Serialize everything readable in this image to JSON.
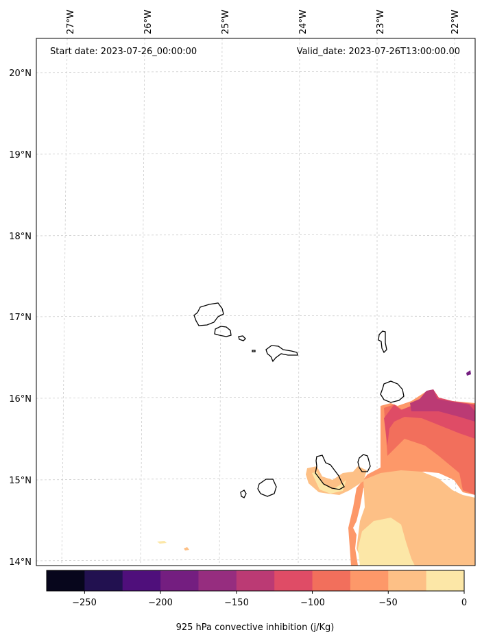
{
  "map": {
    "start_label": "Start date: 2023-07-26_00:00:00",
    "valid_label": "Valid_date: 2023-07-26T13:00:00.00",
    "lon_ticks": [
      "27°W",
      "26°W",
      "25°W",
      "24°W",
      "23°W",
      "22°W"
    ],
    "lat_ticks": [
      "20°N",
      "19°N",
      "18°N",
      "17°N",
      "16°N",
      "15°N",
      "14°N"
    ],
    "gridlines": true,
    "colorbar": {
      "label": "925 hPa convective inhibition (j/Kg)",
      "tick_labels": [
        "−250",
        "−200",
        "−150",
        "−100",
        "−50",
        "0"
      ],
      "levels": [
        -275,
        -250,
        -225,
        -200,
        -175,
        -150,
        -125,
        -100,
        -75,
        -50,
        -25,
        0
      ],
      "colors": [
        "#07061c",
        "#221150",
        "#4f0f7b",
        "#741e80",
        "#962d7f",
        "#bb3a74",
        "#df4c66",
        "#f26f5c",
        "#fd9869",
        "#fdc086",
        "#fce7a7"
      ]
    }
  }
}
